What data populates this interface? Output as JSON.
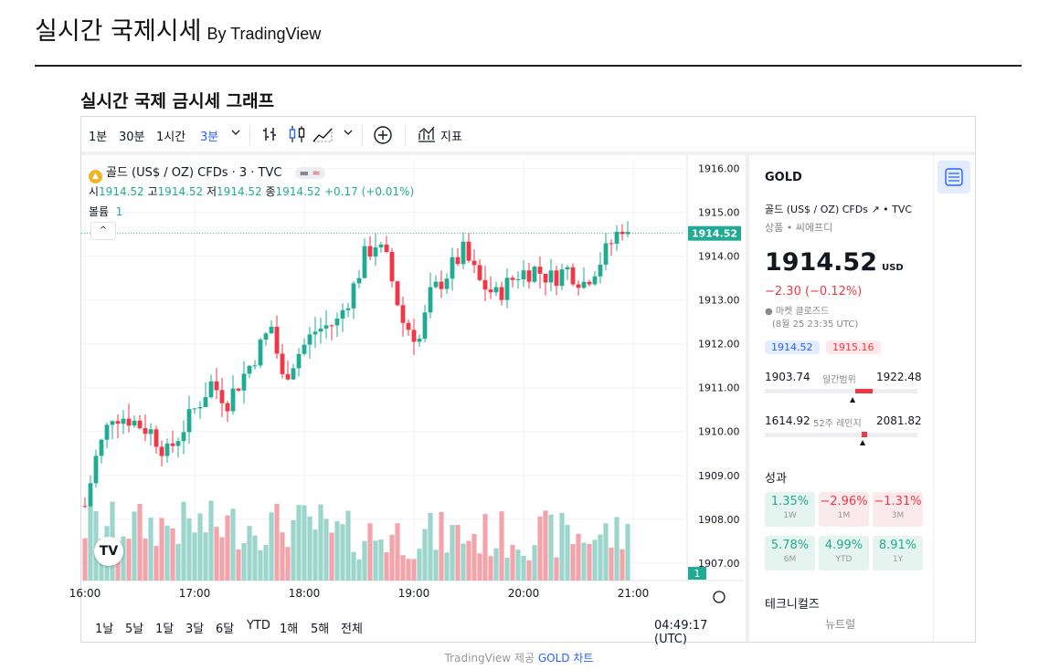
{
  "page": {
    "title": "실시간 국제시세",
    "title_by": "By TradingView",
    "section_title": "실시간 국제 금시세 그래프",
    "footer_prefix": "TradingView 제공",
    "footer_link": "GOLD 차트"
  },
  "toolbar": {
    "intervals": [
      "1분",
      "30분",
      "1시간",
      "3분"
    ],
    "active_interval": "3분",
    "indicators_label": "지표"
  },
  "legend": {
    "symbol": "골드 (US$ / OZ) CFDs · 3 · TVC",
    "o_label": "시",
    "o": "1914.52",
    "h_label": "고",
    "h": "1914.52",
    "l_label": "저",
    "l": "1914.52",
    "c_label": "종",
    "c": "1914.52",
    "change": "+0.17 (+0.01%)",
    "volume_label": "볼륨",
    "volume": "1"
  },
  "chart_data": {
    "type": "candlestick",
    "symbol": "GOLD",
    "interval": "3m",
    "yaxis_ticks": [
      "1916.00",
      "1915.00",
      "1914.00",
      "1913.00",
      "1912.00",
      "1911.00",
      "1910.00",
      "1909.00",
      "1908.00",
      "1907.00"
    ],
    "ylim": [
      1906.6,
      1916.2
    ],
    "xaxis_ticks": [
      "16:00",
      "17:00",
      "18:00",
      "19:00",
      "20:00",
      "21:00"
    ],
    "last_price": "1914.52",
    "last_volume": "1",
    "close_path": [
      [
        16.0,
        1908.3
      ],
      [
        16.1,
        1909.4
      ],
      [
        16.25,
        1910.4
      ],
      [
        16.4,
        1910.3
      ],
      [
        16.6,
        1910.0
      ],
      [
        16.75,
        1909.5
      ],
      [
        16.95,
        1910.3
      ],
      [
        17.15,
        1911.1
      ],
      [
        17.3,
        1910.7
      ],
      [
        17.5,
        1911.5
      ],
      [
        17.7,
        1912.4
      ],
      [
        17.8,
        1911.2
      ],
      [
        17.95,
        1911.8
      ],
      [
        18.1,
        1912.3
      ],
      [
        18.3,
        1912.5
      ],
      [
        18.45,
        1913.3
      ],
      [
        18.55,
        1914.0
      ],
      [
        18.65,
        1914.3
      ],
      [
        18.75,
        1913.9
      ],
      [
        18.9,
        1912.5
      ],
      [
        19.05,
        1912.1
      ],
      [
        19.15,
        1913.1
      ],
      [
        19.3,
        1913.6
      ],
      [
        19.45,
        1914.1
      ],
      [
        19.6,
        1913.4
      ],
      [
        19.75,
        1913.1
      ],
      [
        19.95,
        1913.6
      ],
      [
        20.1,
        1913.7
      ],
      [
        20.25,
        1913.5
      ],
      [
        20.4,
        1913.7
      ],
      [
        20.55,
        1913.4
      ],
      [
        20.7,
        1913.9
      ],
      [
        20.8,
        1914.3
      ],
      [
        20.9,
        1914.7
      ],
      [
        20.97,
        1914.3
      ]
    ],
    "volume_range": [
      0,
      10
    ],
    "legend_position": "top-left"
  },
  "bottombar": {
    "ranges": [
      "1날",
      "5날",
      "1달",
      "3달",
      "6달",
      "YTD",
      "1해",
      "5해",
      "전체"
    ],
    "clock": "04:49:17 (UTC)"
  },
  "side": {
    "symbol": "GOLD",
    "description": "골드 (US$ / OZ) CFDs",
    "exchange": "TVC",
    "category": "상품 • 씨에프디",
    "price": "1914.52",
    "currency": "USD",
    "change": "−2.30 (−0.12%)",
    "status": "마켓 클로즈드",
    "status_time": "(8월 25 23:35 UTC)",
    "bid": "1914.52",
    "ask": "1915.16",
    "day_low": "1903.74",
    "day_label": "일간범위",
    "day_high": "1922.48",
    "year_low": "1614.92",
    "year_label": "52주 레인지",
    "year_high": "2081.82",
    "performance_title": "성과",
    "performance": [
      {
        "value": "1.35%",
        "period": "1W",
        "dir": "pos"
      },
      {
        "value": "−2.96%",
        "period": "1M",
        "dir": "neg"
      },
      {
        "value": "−1.31%",
        "period": "3M",
        "dir": "neg"
      },
      {
        "value": "5.78%",
        "period": "6M",
        "dir": "pos"
      },
      {
        "value": "4.99%",
        "period": "YTD",
        "dir": "pos"
      },
      {
        "value": "8.91%",
        "period": "1Y",
        "dir": "pos"
      }
    ],
    "technicals_title": "테크니컬즈",
    "technicals_value": "뉴트럴"
  },
  "colors": {
    "up": "#22ab94",
    "down": "#f23645",
    "up_vol": "#9bd5cb",
    "down_vol": "#f2a4aa",
    "accent": "#2962ff"
  }
}
